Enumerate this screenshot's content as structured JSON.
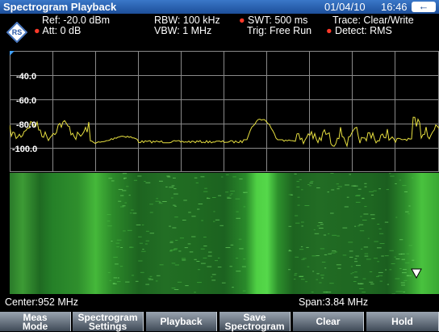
{
  "title_bar": {
    "title": "Spectrogram Playback",
    "date": "01/04/10",
    "time": "16:46",
    "back_icon": "back-arrow-icon"
  },
  "info": {
    "ref": "Ref: -20.0 dBm",
    "att": "Att: 0 dB",
    "rbw": "RBW:  100 kHz",
    "vbw": "VBW:  1 MHz",
    "swt": "SWT:   500 ms",
    "trig": "Trig:   Free Run",
    "trace": "Trace:   Clear/Write",
    "detect": "Detect:  RMS"
  },
  "plot": {
    "y_ticks": [
      "-40.0",
      "-60.0",
      "-80.0",
      "-100.0"
    ],
    "trace_color": "#e8e040"
  },
  "footer": {
    "center": "Center:952 MHz",
    "span": "Span:3.84 MHz"
  },
  "softkeys": [
    {
      "line1": "Meas",
      "line2": "Mode"
    },
    {
      "line1": "Spectrogram",
      "line2": "Settings"
    },
    {
      "line1": "Playback",
      "line2": ""
    },
    {
      "line1": "Save",
      "line2": "Spectrogram"
    },
    {
      "line1": "Clear",
      "line2": ""
    },
    {
      "line1": "Hold",
      "line2": ""
    }
  ],
  "colors": {
    "title_bar": "#2a63b4",
    "dots": "#ff3a2a",
    "spectrogram_green": "#22c82a"
  }
}
